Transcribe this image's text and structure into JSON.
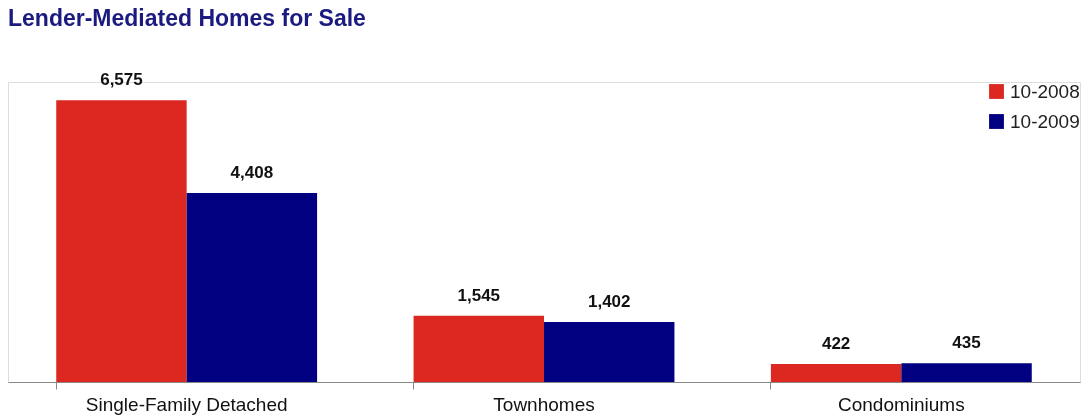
{
  "chart_data": {
    "type": "bar",
    "title": "Lender-Mediated Homes for Sale",
    "categories": [
      "Single-Family Detached",
      "Townhomes",
      "Condominiums"
    ],
    "series": [
      {
        "name": "10-2008",
        "color": "#dc2820",
        "values": [
          6575,
          1545,
          422
        ],
        "value_labels": [
          "6,575",
          "1,545",
          "422"
        ]
      },
      {
        "name": "10-2009",
        "color": "#000080",
        "values": [
          4408,
          1402,
          435
        ],
        "value_labels": [
          "4,408",
          "1,402",
          "435"
        ]
      }
    ],
    "tick_labels": "x",
    "legend": "top right",
    "grid": false
  }
}
